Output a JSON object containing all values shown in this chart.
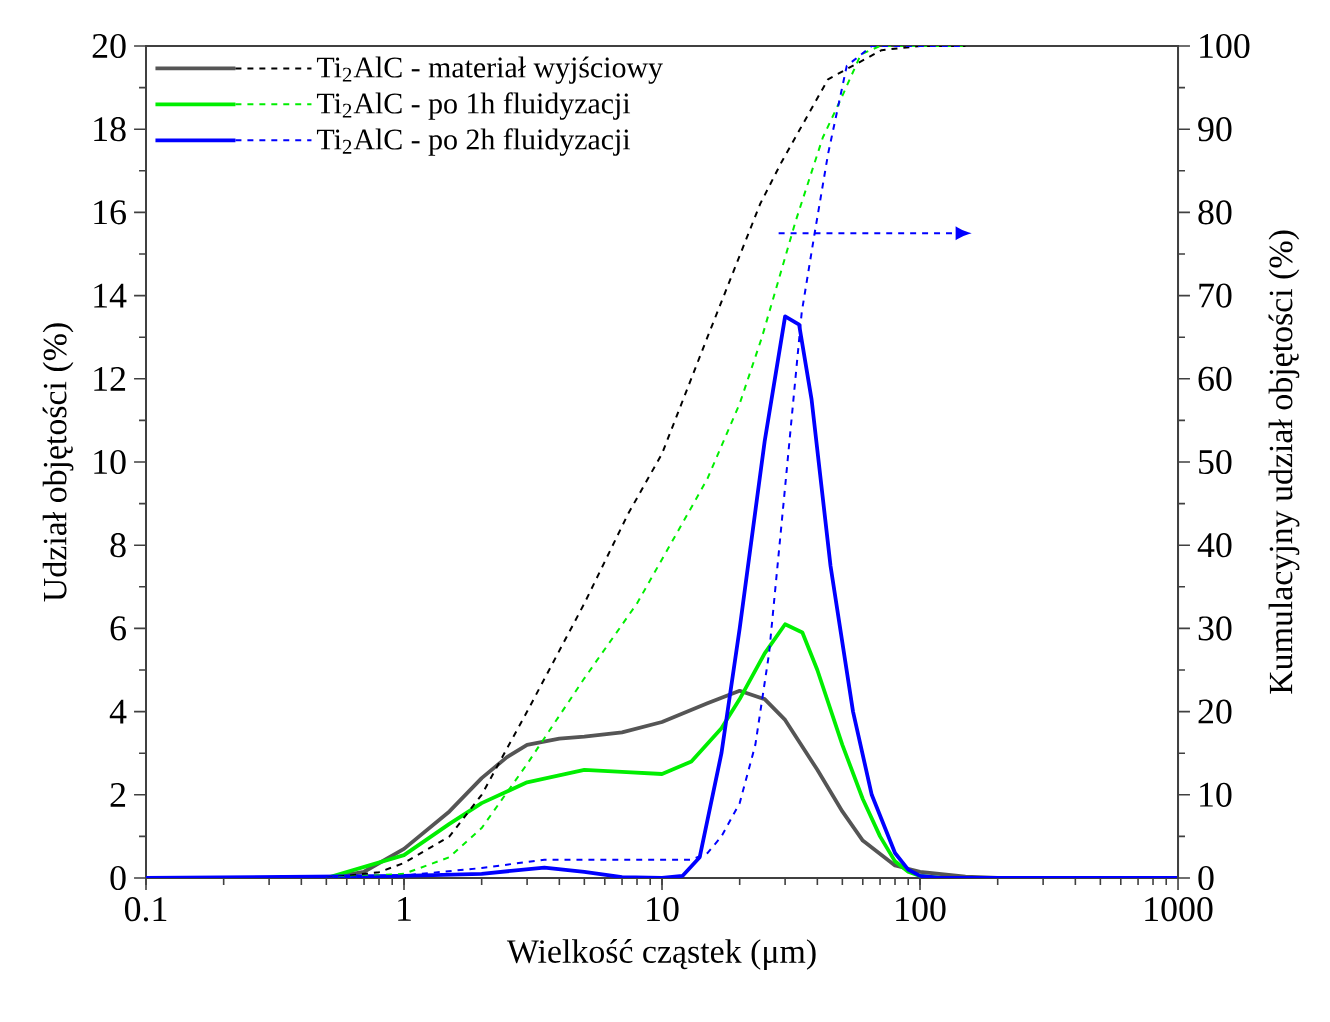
{
  "chart_data": {
    "type": "line",
    "xlabel": "Wielkość cząstek (μm)",
    "ylabel": "Udział objętości (%)",
    "y2label": "Kumulacyjny udział objętości (%)",
    "log": "x",
    "xlim": [
      0.1,
      1000
    ],
    "xticks": [
      0.1,
      1,
      10,
      100,
      1000
    ],
    "ylim": [
      0,
      20
    ],
    "yticks": [
      0,
      2,
      4,
      6,
      8,
      10,
      12,
      14,
      16,
      18,
      20
    ],
    "y2lim": [
      0,
      100
    ],
    "y2ticks": [
      0,
      10,
      20,
      30,
      40,
      50,
      60,
      70,
      80,
      90,
      100
    ],
    "legend": "top left",
    "grid": false,
    "marker": "none",
    "series": [
      {
        "color": "#555555",
        "line_style": "solid",
        "x": [
          0.1,
          0.5,
          0.7,
          1,
          1.5,
          2,
          2.5,
          3,
          4,
          5,
          7,
          10,
          15,
          20,
          25,
          30,
          40,
          50,
          60,
          80,
          100,
          150,
          200,
          1000
        ],
        "values": [
          0,
          0,
          0.15,
          0.7,
          1.6,
          2.4,
          2.9,
          3.2,
          3.35,
          3.4,
          3.5,
          3.75,
          4.2,
          4.5,
          4.3,
          3.8,
          2.6,
          1.6,
          0.9,
          0.3,
          0.15,
          0.03,
          0,
          0
        ]
      },
      {
        "color": "#00ee00",
        "line_style": "solid",
        "x": [
          0.1,
          0.5,
          1,
          1.5,
          2,
          3,
          5,
          7,
          10,
          13,
          17,
          20,
          25,
          30,
          35,
          40,
          50,
          60,
          70,
          80,
          90,
          100,
          120,
          1000
        ],
        "values": [
          0,
          0,
          0.55,
          1.3,
          1.8,
          2.3,
          2.6,
          2.55,
          2.5,
          2.8,
          3.6,
          4.3,
          5.4,
          6.1,
          5.9,
          5.0,
          3.2,
          1.9,
          1.0,
          0.4,
          0.15,
          0.05,
          0,
          0
        ]
      },
      {
        "color": "#0000ff",
        "line_style": "solid",
        "x": [
          0.1,
          1,
          2,
          3.5,
          5,
          7,
          10,
          12,
          14,
          17,
          20,
          25,
          30,
          34,
          38,
          45,
          55,
          65,
          80,
          90,
          100,
          120,
          1000
        ],
        "values": [
          0,
          0.05,
          0.1,
          0.25,
          0.15,
          0.02,
          0,
          0.05,
          0.5,
          3,
          6,
          10.5,
          13.5,
          13.3,
          11.5,
          7.5,
          4,
          2,
          0.6,
          0.2,
          0.05,
          0,
          0
        ]
      },
      {
        "name": "Ti$_{2}$AlC - materiał wyjściowy",
        "color": "#000000",
        "line_style": "dashed",
        "axis": "y2",
        "x": [
          0.5,
          0.8,
          1,
          1.5,
          2,
          3,
          5,
          7.4,
          10,
          15,
          24,
          29,
          44,
          71,
          100,
          150
        ],
        "values": [
          0,
          0.7,
          1.8,
          5,
          10,
          20,
          33,
          43.8,
          51,
          65,
          81,
          86,
          96,
          99.5,
          100,
          100
        ]
      },
      {
        "name": "Ti$_{2}$AlC - po 1h fluidyzacji",
        "color": "#00ee00",
        "line_style": "dashed",
        "axis": "y2",
        "x": [
          0.5,
          1,
          1.5,
          2,
          3,
          5,
          8,
          12.6,
          15,
          20,
          24.4,
          33,
          42,
          50,
          59,
          70,
          150
        ],
        "values": [
          0,
          0.5,
          2.5,
          6,
          13.7,
          24,
          33,
          43.8,
          48,
          57,
          65,
          79,
          89,
          94,
          99,
          100,
          100
        ]
      },
      {
        "name": "Ti$_{2}$AlC - po 2h fluidyzacji",
        "color": "#0000ff",
        "line_style": "dashed",
        "axis": "y2",
        "x": [
          0.5,
          1,
          2,
          3.5,
          13,
          15,
          17,
          20,
          23,
          26,
          30,
          34.8,
          39,
          44,
          52,
          65,
          150
        ],
        "values": [
          0,
          0.3,
          1.2,
          2.2,
          2.2,
          3,
          5,
          9,
          16,
          27,
          47,
          68,
          77.4,
          87,
          97.6,
          100,
          100
        ]
      }
    ]
  }
}
